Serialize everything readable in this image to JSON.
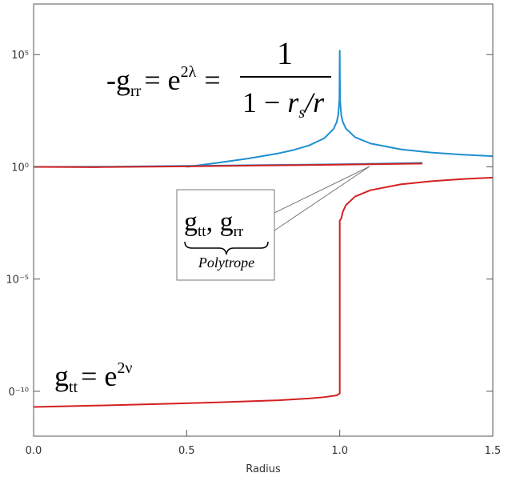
{
  "chart_data": {
    "type": "line",
    "xlabel": "Radius",
    "ylog": true,
    "xlim": [
      0,
      1.5
    ],
    "ylim": [
      1e-12,
      18000000.0
    ],
    "xticks": [
      {
        "value": 0,
        "label": "0.0"
      },
      {
        "value": 0.5,
        "label": "0.5"
      },
      {
        "value": 1,
        "label": "1.0"
      },
      {
        "value": 1.5,
        "label": "1.5"
      }
    ],
    "yticks": [
      {
        "value": 1e-10,
        "label": "0⁻¹⁰"
      },
      {
        "value": 1e-05,
        "label": "10⁻⁵"
      },
      {
        "value": 1,
        "label": "10⁰"
      },
      {
        "value": 100000,
        "label": "10⁵"
      }
    ],
    "series": [
      {
        "color": "#1f8fd0",
        "x": [
          0.5,
          0.6,
          0.7,
          0.8,
          0.85,
          0.9,
          0.95,
          0.98,
          0.99,
          0.995,
          0.999,
          1.0,
          1.001,
          1.005,
          1.01,
          1.02,
          1.05,
          1.1,
          1.2,
          1.3,
          1.4,
          1.5
        ],
        "values": [
          1,
          1.5,
          2.33,
          4,
          5.67,
          9,
          19,
          49,
          99,
          199,
          999,
          150000,
          1001,
          201,
          101,
          51,
          21,
          11,
          6,
          4.33,
          3.5,
          3
        ]
      },
      {
        "color": "#d42020",
        "x": [
          0,
          0.2,
          0.4,
          0.6,
          0.8,
          0.9,
          0.95,
          0.99,
          1.0,
          1.0,
          1.005,
          1.01,
          1.02,
          1.05,
          1.1,
          1.2,
          1.3,
          1.4,
          1.5
        ],
        "values": [
          2e-11,
          2.3e-11,
          2.7e-11,
          3.2e-11,
          4e-11,
          4.8e-11,
          5.5e-11,
          6.6e-11,
          8e-11,
          0.004,
          0.005,
          0.0099,
          0.0196,
          0.0476,
          0.0909,
          0.167,
          0.231,
          0.286,
          0.333
        ]
      },
      {
        "color": "#1f8fd0",
        "x": [
          0,
          0.25,
          0.5,
          0.75,
          1.0,
          1.27
        ],
        "values": [
          1,
          1.02,
          1.1,
          1.2,
          1.3,
          1.5
        ]
      },
      {
        "color": "#d42020",
        "x": [
          0,
          0.2,
          0.5,
          0.75,
          1.0,
          1.27
        ],
        "values": [
          1,
          0.97,
          1.05,
          1.15,
          1.25,
          1.4
        ]
      }
    ],
    "annotations": [
      {
        "parts": [
          "-g",
          "rr",
          "= e",
          "2λ",
          "=",
          "1",
          "1 − ",
          "r",
          "s",
          "/r"
        ]
      },
      {
        "parts": [
          "g",
          "tt",
          ", g",
          "rr",
          "Polytrope"
        ]
      },
      {
        "parts": [
          "g",
          "tt",
          "= e",
          "2ν"
        ]
      }
    ]
  }
}
